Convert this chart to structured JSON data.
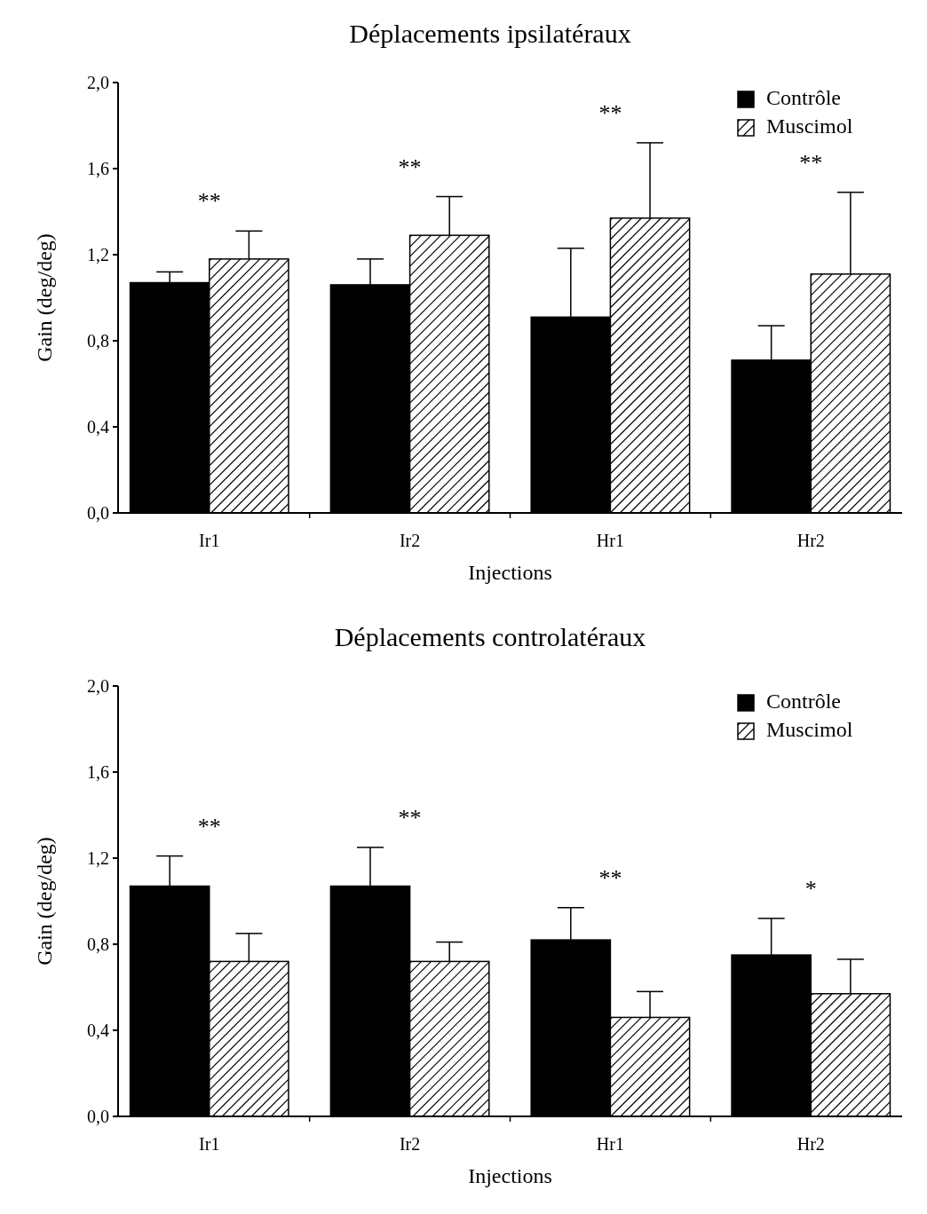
{
  "chart_data": [
    {
      "type": "bar",
      "title": "Déplacements ipsilatéraux",
      "xlabel": "Injections",
      "ylabel": "Gain (deg/deg)",
      "categories": [
        "Ir1",
        "Ir2",
        "Hr1",
        "Hr2"
      ],
      "series": [
        {
          "name": "Contrôle",
          "color": "#000000",
          "values": [
            1.07,
            1.06,
            0.91,
            0.71
          ],
          "errors": [
            [
              1.07,
              1.12
            ],
            [
              1.06,
              1.18
            ],
            [
              0.91,
              1.23
            ],
            [
              0.71,
              0.87
            ]
          ]
        },
        {
          "name": "Muscimol",
          "color": "#ffffff",
          "values": [
            1.18,
            1.29,
            1.37,
            1.11
          ],
          "errors": [
            [
              1.18,
              1.31
            ],
            [
              1.29,
              1.47
            ],
            [
              1.37,
              1.72
            ],
            [
              1.11,
              1.49
            ]
          ]
        }
      ],
      "ylim": [
        0,
        2
      ],
      "yticks": [
        {
          "value": 0,
          "label": "0,0"
        },
        {
          "value": 0.4,
          "label": "0,4"
        },
        {
          "value": 0.8,
          "label": "0,8"
        },
        {
          "value": 1.2,
          "label": "1,2"
        },
        {
          "value": 1.6,
          "label": "1,6"
        },
        {
          "value": 2,
          "label": "2,0"
        }
      ],
      "annotations": [
        "**",
        "**",
        "**",
        "**"
      ],
      "legend": "top right",
      "grid": false
    },
    {
      "type": "bar",
      "title": "Déplacements controlatéraux",
      "xlabel": "Injections",
      "ylabel": "Gain (deg/deg)",
      "categories": [
        "Ir1",
        "Ir2",
        "Hr1",
        "Hr2"
      ],
      "series": [
        {
          "name": "Contrôle",
          "color": "#000000",
          "values": [
            1.07,
            1.07,
            0.82,
            0.75
          ],
          "errors": [
            [
              1.07,
              1.21
            ],
            [
              1.07,
              1.25
            ],
            [
              0.82,
              0.97
            ],
            [
              0.75,
              0.92
            ]
          ]
        },
        {
          "name": "Muscimol",
          "color": "#ffffff",
          "values": [
            0.72,
            0.72,
            0.46,
            0.57
          ],
          "errors": [
            [
              0.72,
              0.85
            ],
            [
              0.72,
              0.81
            ],
            [
              0.46,
              0.58
            ],
            [
              0.57,
              0.73
            ]
          ]
        }
      ],
      "ylim": [
        0,
        2
      ],
      "yticks": [
        {
          "value": 0,
          "label": "0,0"
        },
        {
          "value": 0.4,
          "label": "0,4"
        },
        {
          "value": 0.8,
          "label": "0,8"
        },
        {
          "value": 1.2,
          "label": "1,2"
        },
        {
          "value": 1.6,
          "label": "1,6"
        },
        {
          "value": 2,
          "label": "2,0"
        }
      ],
      "annotations": [
        "**",
        "**",
        "**",
        "*"
      ],
      "legend": "top right",
      "grid": false
    }
  ]
}
